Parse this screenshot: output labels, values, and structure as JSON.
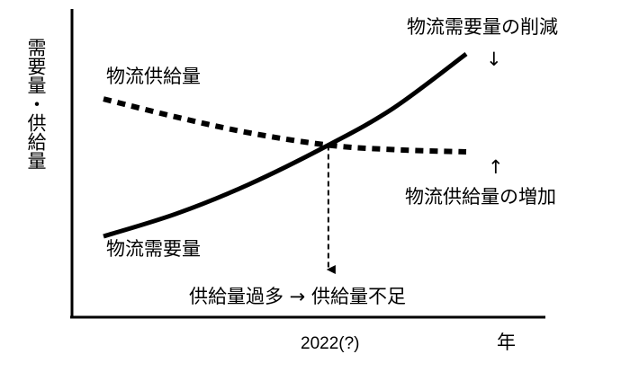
{
  "chart_data": {
    "type": "line",
    "ylabel": "需要量・供給量",
    "xlabel": "年",
    "x_tick_label": "2022(?)",
    "series": [
      {
        "name": "物流供給量",
        "style": "dotted",
        "color": "#000000",
        "x": [
          0,
          0.2,
          0.4,
          0.62,
          0.8,
          1.0
        ],
        "y": [
          0.74,
          0.66,
          0.59,
          0.535,
          0.515,
          0.505
        ]
      },
      {
        "name": "物流需要量",
        "style": "solid",
        "color": "#000000",
        "x": [
          0,
          0.2,
          0.4,
          0.62,
          0.8,
          1.0
        ],
        "y": [
          0.13,
          0.23,
          0.36,
          0.535,
          0.7,
          0.94
        ]
      }
    ],
    "annotations": {
      "demand_reduction": "物流需要量の削減",
      "supply_increase": "物流供給量の増加",
      "transition": "供給量過多 → 供給量不足"
    },
    "arrow_glyphs": {
      "down": "↓",
      "up": "↑"
    }
  }
}
